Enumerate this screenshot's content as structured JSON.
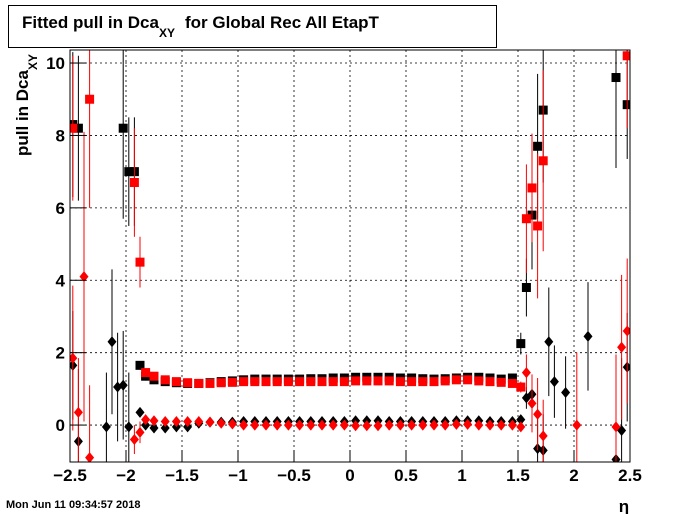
{
  "chart_data": {
    "type": "scatter",
    "title": {
      "text": "Fitted pull in Dca",
      "subscript": "XY",
      "after": "for Global Rec All EtapT"
    },
    "y_label": {
      "text": "pull in Dca",
      "subscript": "XY"
    },
    "x_label": "η",
    "timestamp": "Mon Jun 11 09:34:57 2018",
    "grid": true,
    "xlim": [
      -2.5,
      2.5
    ],
    "ylim": [
      -1.02,
      10.36
    ],
    "xticks": [
      {
        "value": -2.5,
        "label": "−2.5"
      },
      {
        "value": -2,
        "label": "−2"
      },
      {
        "value": -1.5,
        "label": "−1.5"
      },
      {
        "value": -1,
        "label": "−1"
      },
      {
        "value": -0.5,
        "label": "−0.5"
      },
      0,
      0.5,
      1,
      1.5,
      2,
      2.5
    ],
    "yticks": [
      0,
      2,
      4,
      6,
      8,
      10
    ],
    "x": [
      -2.475,
      -2.425,
      -2.375,
      -2.325,
      -2.175,
      -2.125,
      -2.075,
      -2.025,
      -1.975,
      -1.925,
      -1.875,
      -1.825,
      -1.75,
      -1.65,
      -1.55,
      -1.45,
      -1.35,
      -1.25,
      -1.15,
      -1.05,
      -0.95,
      -0.85,
      -0.75,
      -0.65,
      -0.55,
      -0.45,
      -0.35,
      -0.25,
      -0.15,
      -0.05,
      0.05,
      0.15,
      0.25,
      0.35,
      0.45,
      0.55,
      0.65,
      0.75,
      0.85,
      0.95,
      1.05,
      1.15,
      1.25,
      1.35,
      1.45,
      1.525,
      1.575,
      1.625,
      1.675,
      1.725,
      1.775,
      1.825,
      1.925,
      2.025,
      2.125,
      2.375,
      2.425,
      2.475
    ],
    "series": [
      {
        "color": "#000000",
        "marker": "square",
        "values": [
          8.3,
          8.2,
          null,
          null,
          null,
          null,
          null,
          8.2,
          7.0,
          7.0,
          1.65,
          1.35,
          1.25,
          1.2,
          1.17,
          1.15,
          1.15,
          1.17,
          1.2,
          1.22,
          1.25,
          1.27,
          1.27,
          1.27,
          1.27,
          1.27,
          1.28,
          1.28,
          1.3,
          1.3,
          1.32,
          1.32,
          1.32,
          1.32,
          1.3,
          1.3,
          1.28,
          1.27,
          1.28,
          1.3,
          1.32,
          1.32,
          1.3,
          1.27,
          1.3,
          2.25,
          3.8,
          5.8,
          7.7,
          8.7,
          null,
          null,
          null,
          null,
          null,
          9.6,
          null,
          8.85
        ],
        "errors": [
          2,
          2,
          null,
          null,
          null,
          null,
          null,
          2.5,
          1.5,
          1.5,
          0.1,
          0.05,
          0.03,
          0.03,
          0.03,
          0.03,
          0.03,
          0.03,
          0.03,
          0.03,
          0.03,
          0.03,
          0.03,
          0.03,
          0.03,
          0.03,
          0.03,
          0.03,
          0.03,
          0.03,
          0.03,
          0.03,
          0.03,
          0.03,
          0.03,
          0.03,
          0.03,
          0.03,
          0.03,
          0.03,
          0.03,
          0.03,
          0.03,
          0.03,
          0.03,
          0.3,
          0.8,
          1.5,
          2,
          2,
          null,
          null,
          null,
          null,
          null,
          2.5,
          null,
          1.5
        ]
      },
      {
        "color": "#ff0000",
        "marker": "square",
        "values": [
          8.2,
          null,
          null,
          9.0,
          null,
          null,
          null,
          null,
          null,
          6.7,
          4.5,
          1.45,
          1.35,
          1.25,
          1.2,
          1.17,
          1.15,
          1.15,
          1.17,
          1.18,
          1.2,
          1.2,
          1.2,
          1.2,
          1.2,
          1.2,
          1.2,
          1.2,
          1.2,
          1.2,
          1.22,
          1.22,
          1.22,
          1.22,
          1.2,
          1.2,
          1.2,
          1.2,
          1.22,
          1.25,
          1.25,
          1.22,
          1.2,
          1.18,
          1.15,
          1.05,
          5.7,
          6.55,
          5.5,
          7.3,
          null,
          null,
          null,
          null,
          null,
          null,
          null,
          10.2
        ],
        "errors": [
          2,
          null,
          null,
          3,
          null,
          null,
          null,
          null,
          null,
          1.5,
          0.7,
          0.05,
          0.03,
          0.03,
          0.03,
          0.03,
          0.03,
          0.03,
          0.03,
          0.03,
          0.03,
          0.03,
          0.03,
          0.03,
          0.03,
          0.03,
          0.03,
          0.03,
          0.03,
          0.03,
          0.03,
          0.03,
          0.03,
          0.03,
          0.03,
          0.03,
          0.03,
          0.03,
          0.03,
          0.03,
          0.03,
          0.03,
          0.03,
          0.03,
          0.03,
          0.15,
          1.5,
          1.5,
          2,
          2.5,
          null,
          null,
          null,
          null,
          null,
          null,
          null,
          2
        ]
      },
      {
        "color": "#000000",
        "marker": "diamond",
        "values": [
          1.65,
          -0.45,
          null,
          null,
          -0.05,
          2.3,
          1.05,
          1.1,
          -0.05,
          null,
          0.35,
          0.0,
          -0.08,
          -0.08,
          -0.05,
          -0.05,
          0.05,
          0.08,
          0.08,
          0.08,
          0.1,
          0.1,
          0.1,
          0.1,
          0.1,
          0.1,
          0.1,
          0.1,
          0.1,
          0.1,
          0.12,
          0.12,
          0.12,
          0.1,
          0.1,
          0.1,
          0.1,
          0.1,
          0.1,
          0.12,
          0.12,
          0.12,
          0.1,
          0.1,
          0.1,
          0.15,
          0.75,
          0.85,
          -0.65,
          -0.7,
          2.3,
          1.2,
          0.9,
          null,
          2.45,
          -0.95,
          -0.15,
          1.6
        ],
        "errors": [
          1.5,
          2,
          null,
          null,
          1.5,
          2,
          1.5,
          1.5,
          1.5,
          null,
          0.1,
          0.05,
          0.02,
          0.02,
          0.02,
          0.02,
          0.02,
          0.02,
          0.02,
          0.02,
          0.02,
          0.02,
          0.02,
          0.02,
          0.02,
          0.02,
          0.02,
          0.02,
          0.02,
          0.02,
          0.02,
          0.02,
          0.02,
          0.02,
          0.02,
          0.02,
          0.02,
          0.02,
          0.02,
          0.02,
          0.02,
          0.02,
          0.02,
          0.02,
          0.02,
          0.1,
          0.3,
          0.5,
          1,
          1,
          1.5,
          1,
          1,
          null,
          1.5,
          2,
          2,
          1.5
        ]
      },
      {
        "color": "#ff0000",
        "marker": "diamond",
        "values": [
          1.85,
          0.35,
          4.1,
          -0.9,
          null,
          null,
          null,
          null,
          null,
          -0.4,
          -0.2,
          0.15,
          0.12,
          0.1,
          0.1,
          0.1,
          0.1,
          0.08,
          0.05,
          0.03,
          0.0,
          0.0,
          0.0,
          0.0,
          0.0,
          0.0,
          0.0,
          0.0,
          0.0,
          0.0,
          -0.02,
          -0.02,
          -0.02,
          0.0,
          0.0,
          0.0,
          0.0,
          0.0,
          0.0,
          0.02,
          0.02,
          0.0,
          0.0,
          0.0,
          0.0,
          -0.05,
          1.45,
          0.6,
          0.3,
          -0.3,
          null,
          null,
          null,
          0.0,
          null,
          -0.05,
          2.15,
          2.6
        ],
        "errors": [
          2,
          1.5,
          4,
          2,
          null,
          null,
          null,
          null,
          null,
          0.4,
          0.3,
          0.05,
          0.02,
          0.02,
          0.02,
          0.02,
          0.02,
          0.02,
          0.02,
          0.02,
          0.02,
          0.02,
          0.02,
          0.02,
          0.02,
          0.02,
          0.02,
          0.02,
          0.02,
          0.02,
          0.02,
          0.02,
          0.02,
          0.02,
          0.02,
          0.02,
          0.02,
          0.02,
          0.02,
          0.02,
          0.02,
          0.02,
          0.02,
          0.02,
          0.02,
          0.1,
          0.5,
          0.8,
          1,
          1,
          null,
          null,
          null,
          2,
          null,
          2,
          2,
          2
        ]
      }
    ]
  }
}
